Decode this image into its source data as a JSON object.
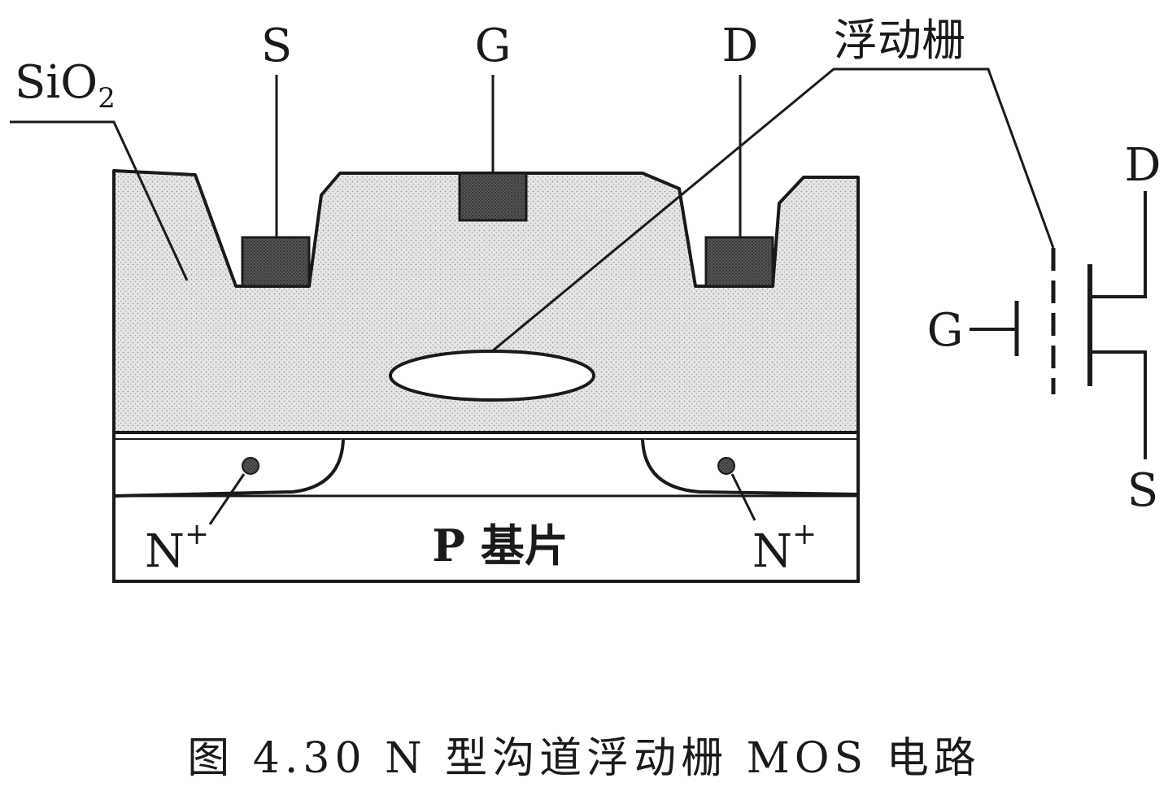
{
  "labels": {
    "sio2_main": "SiO",
    "sio2_sub": "2",
    "source": "S",
    "gate": "G",
    "drain": "D",
    "floating_gate": "浮动栅",
    "n_plus_left": "N",
    "n_plus_right": "N",
    "n_plus_sup": "+",
    "substrate": "P 基片"
  },
  "symbol": {
    "drain": "D",
    "gate": "G",
    "source": "S"
  },
  "caption": "图 4.30   N 型沟道浮动栅 MOS 电路",
  "colors": {
    "oxide_fill": "#d9d9d9",
    "electrode_fill": "#4a4a4a",
    "line": "#1a1a1a"
  }
}
